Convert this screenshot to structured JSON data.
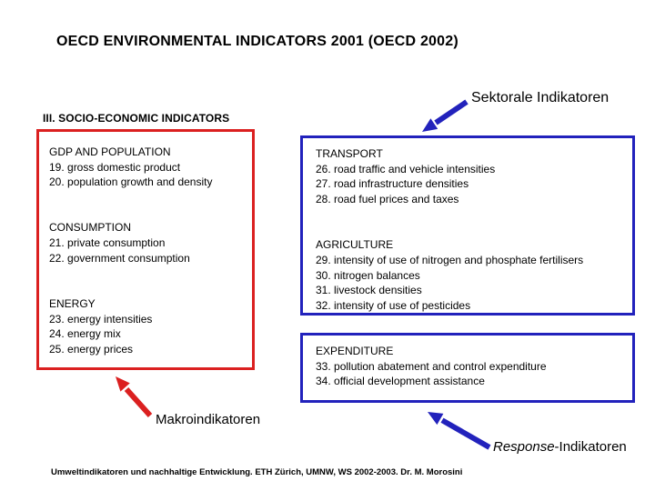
{
  "title": "OECD ENVIRONMENTAL INDICATORS 2001 (OECD 2002)",
  "section_heading": "III. SOCIO-ECONOMIC INDICATORS",
  "colors": {
    "red": "#db2020",
    "blue": "#2222bc"
  },
  "annotations": {
    "sektorale_label": "Sektorale Indikatoren",
    "makro_label": "Makroindikatoren",
    "response_label_italic": "Response",
    "response_label_rest": "-Indikatoren"
  },
  "boxes": {
    "socio_economic": {
      "border_color": "#db2020",
      "lines": [
        "GDP AND POPULATION",
        "19. gross domestic product",
        "20. population growth and density",
        "",
        "",
        "CONSUMPTION",
        "21. private consumption",
        "22. government consumption",
        "",
        "",
        "ENERGY",
        "23. energy intensities",
        "24. energy mix",
        "25. energy prices"
      ]
    },
    "sectoral": {
      "border_color": "#2222bc",
      "lines": [
        "TRANSPORT",
        "26. road traffic and vehicle intensities",
        "27. road infrastructure densities",
        "28. road fuel prices and taxes",
        "",
        "",
        "AGRICULTURE",
        "29. intensity of use of nitrogen and phosphate fertilisers",
        "30. nitrogen balances",
        "31. livestock densities",
        "32. intensity of use of pesticides"
      ]
    },
    "expenditure": {
      "border_color": "#2222bc",
      "lines": [
        "EXPENDITURE",
        "33. pollution abatement and control expenditure",
        "34. official development assistance"
      ]
    }
  },
  "footer": "Umweltindikatoren und nachhaltige Entwicklung. ETH Zürich, UMNW, WS 2002-2003. Dr. M. Morosini"
}
